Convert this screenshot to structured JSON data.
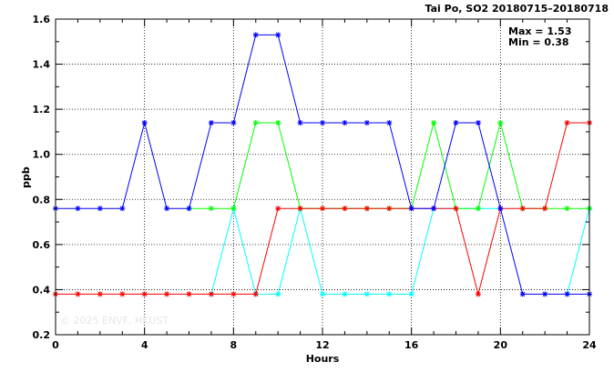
{
  "chart_data": {
    "type": "line",
    "title": "Tai Po, SO2 20180715–20180718",
    "xlabel": "Hours",
    "ylabel": "ppb",
    "xlim": [
      0,
      24
    ],
    "ylim": [
      0.2,
      1.6
    ],
    "xticks": [
      0,
      4,
      8,
      12,
      16,
      20,
      24
    ],
    "yticks": [
      0.2,
      0.4,
      0.6,
      0.8,
      1.0,
      1.2,
      1.4,
      1.6
    ],
    "yticks_labels": [
      "0.2",
      "0.4",
      "0.6",
      "0.8",
      "1.0",
      "1.2",
      "1.4",
      "1.6"
    ],
    "grid": true,
    "stats": {
      "max": "Max = 1.53",
      "min": "Min = 0.38"
    },
    "watermark": "© 2025  ENVF, HKUST",
    "x": [
      0,
      1,
      2,
      3,
      4,
      5,
      6,
      7,
      8,
      9,
      10,
      11,
      12,
      13,
      14,
      15,
      16,
      17,
      18,
      19,
      20,
      21,
      22,
      23,
      24
    ],
    "series": [
      {
        "color": "#00ffff",
        "values": [
          null,
          null,
          null,
          null,
          null,
          null,
          null,
          0.38,
          0.76,
          0.38,
          0.38,
          0.76,
          0.38,
          0.38,
          0.38,
          0.38,
          0.38,
          0.76,
          0.76,
          0.76,
          0.76,
          null,
          null,
          0.38,
          0.76
        ]
      },
      {
        "color": "#00ff00",
        "values": [
          null,
          null,
          null,
          null,
          null,
          null,
          0.76,
          0.76,
          0.76,
          1.14,
          1.14,
          0.76,
          0.76,
          0.76,
          0.76,
          0.76,
          0.76,
          1.14,
          0.76,
          0.76,
          1.14,
          0.76,
          0.76,
          0.76,
          0.76
        ]
      },
      {
        "color": "#ff0000",
        "values": [
          0.38,
          0.38,
          0.38,
          0.38,
          0.38,
          0.38,
          0.38,
          0.38,
          0.38,
          0.38,
          0.76,
          0.76,
          0.76,
          0.76,
          0.76,
          0.76,
          0.76,
          0.76,
          0.76,
          0.38,
          0.76,
          0.76,
          0.76,
          1.14,
          1.14
        ]
      },
      {
        "color": "#0000ff",
        "values": [
          0.76,
          0.76,
          0.76,
          0.76,
          1.14,
          0.76,
          0.76,
          1.14,
          1.14,
          1.53,
          1.53,
          1.14,
          1.14,
          1.14,
          1.14,
          1.14,
          0.76,
          0.76,
          1.14,
          1.14,
          0.76,
          0.38,
          0.38,
          0.38,
          0.38
        ]
      }
    ]
  }
}
